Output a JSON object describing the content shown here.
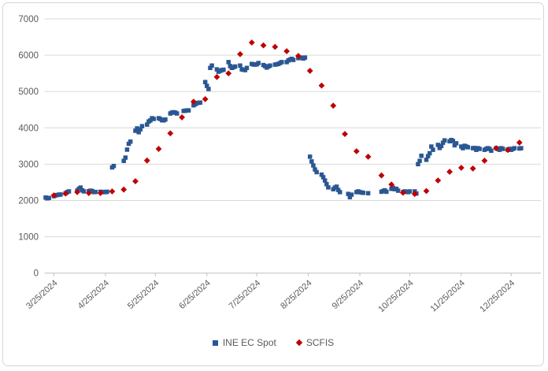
{
  "chart_data": {
    "type": "scatter",
    "title": "",
    "xlabel": "",
    "ylabel": "",
    "grid": true,
    "legend_position": "bottom",
    "axis_text_color": "#595959",
    "gridline_color": "#d9d9d9",
    "axis_line_color": "#bfbfbf",
    "y_axis": {
      "min": 0,
      "max": 7000,
      "step": 1000
    },
    "x_axis": {
      "tick_labels": [
        "3/25/2024",
        "4/25/2024",
        "5/25/2024",
        "6/25/2024",
        "7/25/2024",
        "8/25/2024",
        "9/25/2024",
        "10/25/2024",
        "11/25/2024",
        "12/25/2024"
      ],
      "label_rotation": -42
    },
    "series": [
      {
        "name": "INE EC Spot",
        "marker": "square",
        "color": "#2a5793",
        "points": [
          [
            "3/20/2024",
            2080
          ],
          [
            "3/21/2024",
            2060
          ],
          [
            "3/22/2024",
            2070
          ],
          [
            "3/25/2024",
            2120
          ],
          [
            "3/26/2024",
            2140
          ],
          [
            "3/27/2024",
            2150
          ],
          [
            "3/28/2024",
            2160
          ],
          [
            "3/29/2024",
            2165
          ],
          [
            "4/1/2024",
            2200
          ],
          [
            "4/2/2024",
            2230
          ],
          [
            "4/3/2024",
            2250
          ],
          [
            "4/8/2024",
            2270
          ],
          [
            "4/9/2024",
            2320
          ],
          [
            "4/10/2024",
            2355
          ],
          [
            "4/11/2024",
            2280
          ],
          [
            "4/12/2024",
            2250
          ],
          [
            "4/15/2024",
            2255
          ],
          [
            "4/16/2024",
            2270
          ],
          [
            "4/17/2024",
            2260
          ],
          [
            "4/18/2024",
            2230
          ],
          [
            "4/19/2024",
            2235
          ],
          [
            "4/22/2024",
            2240
          ],
          [
            "4/23/2024",
            2230
          ],
          [
            "4/24/2024",
            2235
          ],
          [
            "4/25/2024",
            2230
          ],
          [
            "4/26/2024",
            2240
          ],
          [
            "4/29/2024",
            2910
          ],
          [
            "4/30/2024",
            2950
          ],
          [
            "5/6/2024",
            3090
          ],
          [
            "5/7/2024",
            3180
          ],
          [
            "5/8/2024",
            3400
          ],
          [
            "5/9/2024",
            3560
          ],
          [
            "5/10/2024",
            3620
          ],
          [
            "5/13/2024",
            3920
          ],
          [
            "5/14/2024",
            3985
          ],
          [
            "5/15/2024",
            3880
          ],
          [
            "5/16/2024",
            3960
          ],
          [
            "5/17/2024",
            4045
          ],
          [
            "5/20/2024",
            4090
          ],
          [
            "5/21/2024",
            4175
          ],
          [
            "5/22/2024",
            4205
          ],
          [
            "5/23/2024",
            4265
          ],
          [
            "5/24/2024",
            4245
          ],
          [
            "5/27/2024",
            4265
          ],
          [
            "5/28/2024",
            4245
          ],
          [
            "5/29/2024",
            4210
          ],
          [
            "5/30/2024",
            4205
          ],
          [
            "5/31/2024",
            4230
          ],
          [
            "6/3/2024",
            4395
          ],
          [
            "6/4/2024",
            4420
          ],
          [
            "6/5/2024",
            4430
          ],
          [
            "6/6/2024",
            4420
          ],
          [
            "6/7/2024",
            4395
          ],
          [
            "6/11/2024",
            4465
          ],
          [
            "6/12/2024",
            4470
          ],
          [
            "6/13/2024",
            4480
          ],
          [
            "6/14/2024",
            4480
          ],
          [
            "6/17/2024",
            4620
          ],
          [
            "6/18/2024",
            4650
          ],
          [
            "6/19/2024",
            4680
          ],
          [
            "6/20/2024",
            4690
          ],
          [
            "6/21/2024",
            4695
          ],
          [
            "6/24/2024",
            5260
          ],
          [
            "6/25/2024",
            5155
          ],
          [
            "6/26/2024",
            5070
          ],
          [
            "6/27/2024",
            5650
          ],
          [
            "6/28/2024",
            5715
          ],
          [
            "7/1/2024",
            5610
          ],
          [
            "7/2/2024",
            5545
          ],
          [
            "7/3/2024",
            5570
          ],
          [
            "7/4/2024",
            5590
          ],
          [
            "7/5/2024",
            5600
          ],
          [
            "7/8/2024",
            5810
          ],
          [
            "7/9/2024",
            5700
          ],
          [
            "7/10/2024",
            5650
          ],
          [
            "7/11/2024",
            5670
          ],
          [
            "7/12/2024",
            5690
          ],
          [
            "7/15/2024",
            5715
          ],
          [
            "7/16/2024",
            5610
          ],
          [
            "7/17/2024",
            5600
          ],
          [
            "7/18/2024",
            5590
          ],
          [
            "7/19/2024",
            5650
          ],
          [
            "7/22/2024",
            5760
          ],
          [
            "7/23/2024",
            5745
          ],
          [
            "7/24/2024",
            5740
          ],
          [
            "7/25/2024",
            5750
          ],
          [
            "7/26/2024",
            5785
          ],
          [
            "7/29/2024",
            5730
          ],
          [
            "7/30/2024",
            5700
          ],
          [
            "7/31/2024",
            5660
          ],
          [
            "8/1/2024",
            5690
          ],
          [
            "8/2/2024",
            5715
          ],
          [
            "8/5/2024",
            5740
          ],
          [
            "8/6/2024",
            5750
          ],
          [
            "8/7/2024",
            5760
          ],
          [
            "8/8/2024",
            5785
          ],
          [
            "8/9/2024",
            5810
          ],
          [
            "8/12/2024",
            5810
          ],
          [
            "8/13/2024",
            5855
          ],
          [
            "8/14/2024",
            5880
          ],
          [
            "8/15/2024",
            5900
          ],
          [
            "8/16/2024",
            5870
          ],
          [
            "8/19/2024",
            5920
          ],
          [
            "8/20/2024",
            5935
          ],
          [
            "8/21/2024",
            5930
          ],
          [
            "8/22/2024",
            5910
          ],
          [
            "8/23/2024",
            5935
          ],
          [
            "8/26/2024",
            3205
          ],
          [
            "8/27/2024",
            3075
          ],
          [
            "8/28/2024",
            2965
          ],
          [
            "8/29/2024",
            2855
          ],
          [
            "8/30/2024",
            2780
          ],
          [
            "9/2/2024",
            2710
          ],
          [
            "9/3/2024",
            2640
          ],
          [
            "9/4/2024",
            2550
          ],
          [
            "9/5/2024",
            2450
          ],
          [
            "9/6/2024",
            2360
          ],
          [
            "9/9/2024",
            2310
          ],
          [
            "9/10/2024",
            2355
          ],
          [
            "9/11/2024",
            2380
          ],
          [
            "9/12/2024",
            2290
          ],
          [
            "9/13/2024",
            2230
          ],
          [
            "9/18/2024",
            2180
          ],
          [
            "9/19/2024",
            2090
          ],
          [
            "9/20/2024",
            2160
          ],
          [
            "9/23/2024",
            2230
          ],
          [
            "9/24/2024",
            2250
          ],
          [
            "9/25/2024",
            2230
          ],
          [
            "9/26/2024",
            2220
          ],
          [
            "9/27/2024",
            2210
          ],
          [
            "9/30/2024",
            2200
          ],
          [
            "10/8/2024",
            2240
          ],
          [
            "10/9/2024",
            2260
          ],
          [
            "10/10/2024",
            2280
          ],
          [
            "10/11/2024",
            2240
          ],
          [
            "10/14/2024",
            2320
          ],
          [
            "10/15/2024",
            2350
          ],
          [
            "10/16/2024",
            2310
          ],
          [
            "10/17/2024",
            2320
          ],
          [
            "10/18/2024",
            2270
          ],
          [
            "10/21/2024",
            2230
          ],
          [
            "10/22/2024",
            2250
          ],
          [
            "10/23/2024",
            2240
          ],
          [
            "10/24/2024",
            2230
          ],
          [
            "10/25/2024",
            2250
          ],
          [
            "10/28/2024",
            2250
          ],
          [
            "10/29/2024",
            2190
          ],
          [
            "10/30/2024",
            3000
          ],
          [
            "10/31/2024",
            3090
          ],
          [
            "11/1/2024",
            3230
          ],
          [
            "11/4/2024",
            3120
          ],
          [
            "11/5/2024",
            3220
          ],
          [
            "11/6/2024",
            3300
          ],
          [
            "11/7/2024",
            3485
          ],
          [
            "11/8/2024",
            3395
          ],
          [
            "11/11/2024",
            3530
          ],
          [
            "11/12/2024",
            3445
          ],
          [
            "11/13/2024",
            3500
          ],
          [
            "11/14/2024",
            3590
          ],
          [
            "11/15/2024",
            3655
          ],
          [
            "11/18/2024",
            3630
          ],
          [
            "11/19/2024",
            3665
          ],
          [
            "11/20/2024",
            3640
          ],
          [
            "11/21/2024",
            3520
          ],
          [
            "11/22/2024",
            3575
          ],
          [
            "11/25/2024",
            3485
          ],
          [
            "11/26/2024",
            3440
          ],
          [
            "11/27/2024",
            3505
          ],
          [
            "11/28/2024",
            3485
          ],
          [
            "11/29/2024",
            3465
          ],
          [
            "12/2/2024",
            3440
          ],
          [
            "12/3/2024",
            3445
          ],
          [
            "12/4/2024",
            3395
          ],
          [
            "12/5/2024",
            3440
          ],
          [
            "12/6/2024",
            3420
          ],
          [
            "12/9/2024",
            3395
          ],
          [
            "12/10/2024",
            3420
          ],
          [
            "12/11/2024",
            3440
          ],
          [
            "12/12/2024",
            3420
          ],
          [
            "12/13/2024",
            3370
          ],
          [
            "12/16/2024",
            3440
          ],
          [
            "12/17/2024",
            3420
          ],
          [
            "12/18/2024",
            3395
          ],
          [
            "12/19/2024",
            3440
          ],
          [
            "12/20/2024",
            3420
          ],
          [
            "12/23/2024",
            3400
          ],
          [
            "12/24/2024",
            3420
          ],
          [
            "12/25/2024",
            3395
          ],
          [
            "12/26/2024",
            3420
          ],
          [
            "12/27/2024",
            3440
          ],
          [
            "12/30/2024",
            3430
          ],
          [
            "12/31/2024",
            3440
          ]
        ]
      },
      {
        "name": "SCFIS",
        "marker": "diamond",
        "color": "#c00000",
        "points": [
          [
            "3/25/2024",
            2140
          ],
          [
            "4/1/2024",
            2190
          ],
          [
            "4/8/2024",
            2230
          ],
          [
            "4/15/2024",
            2205
          ],
          [
            "4/22/2024",
            2205
          ],
          [
            "4/29/2024",
            2250
          ],
          [
            "5/6/2024",
            2300
          ],
          [
            "5/13/2024",
            2530
          ],
          [
            "5/20/2024",
            3100
          ],
          [
            "5/27/2024",
            3420
          ],
          [
            "6/3/2024",
            3850
          ],
          [
            "6/10/2024",
            4290
          ],
          [
            "6/17/2024",
            4720
          ],
          [
            "6/24/2024",
            4790
          ],
          [
            "7/1/2024",
            5400
          ],
          [
            "7/8/2024",
            5500
          ],
          [
            "7/15/2024",
            6030
          ],
          [
            "7/22/2024",
            6350
          ],
          [
            "7/29/2024",
            6270
          ],
          [
            "8/5/2024",
            6230
          ],
          [
            "8/12/2024",
            6110
          ],
          [
            "8/19/2024",
            5980
          ],
          [
            "8/26/2024",
            5570
          ],
          [
            "9/2/2024",
            5165
          ],
          [
            "9/9/2024",
            4610
          ],
          [
            "9/16/2024",
            3830
          ],
          [
            "9/23/2024",
            3355
          ],
          [
            "9/30/2024",
            3205
          ],
          [
            "10/8/2024",
            2690
          ],
          [
            "10/14/2024",
            2440
          ],
          [
            "10/21/2024",
            2215
          ],
          [
            "10/28/2024",
            2180
          ],
          [
            "11/4/2024",
            2260
          ],
          [
            "11/11/2024",
            2550
          ],
          [
            "11/18/2024",
            2790
          ],
          [
            "11/25/2024",
            2900
          ],
          [
            "12/2/2024",
            2880
          ],
          [
            "12/9/2024",
            3095
          ],
          [
            "12/16/2024",
            3440
          ],
          [
            "12/23/2024",
            3390
          ],
          [
            "12/30/2024",
            3595
          ]
        ]
      }
    ]
  }
}
